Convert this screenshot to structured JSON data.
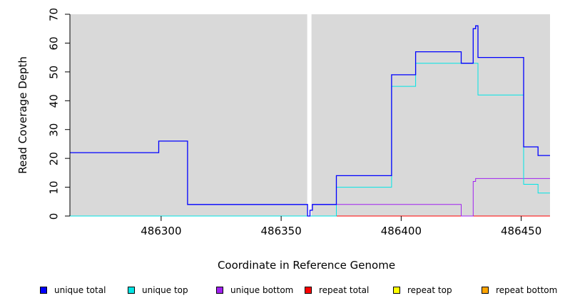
{
  "chart_data": {
    "type": "line",
    "xlabel": "Coordinate in Reference Genome",
    "ylabel": "Read Coverage Depth",
    "xlim": [
      486262,
      486462
    ],
    "ylim": [
      0,
      70
    ],
    "xticks": [
      486300,
      486350,
      486400,
      486450
    ],
    "yticks": [
      0,
      10,
      20,
      30,
      40,
      50,
      60,
      70
    ],
    "background": "#d9d9d9",
    "gap_region": [
      486361,
      486363
    ],
    "series": [
      {
        "name": "unique total",
        "color": "#0000ff",
        "x": [
          486262,
          486299,
          486299,
          486311,
          486311,
          486361,
          486361,
          486362,
          486362,
          486363,
          486363,
          486373,
          486373,
          486396,
          486396,
          486406,
          486406,
          486425,
          486425,
          486430,
          486430,
          486431,
          486431,
          486432,
          486432,
          486451,
          486451,
          486457,
          486457,
          486462
        ],
        "y": [
          22,
          22,
          26,
          26,
          4,
          4,
          0,
          0,
          2,
          2,
          4,
          4,
          14,
          14,
          49,
          49,
          57,
          57,
          53,
          53,
          65,
          65,
          66,
          66,
          55,
          55,
          24,
          24,
          21,
          21
        ]
      },
      {
        "name": "unique top",
        "color": "#00e5e5",
        "x": [
          486262,
          486373,
          486373,
          486396,
          486396,
          486406,
          486406,
          486432,
          486432,
          486451,
          486451,
          486457,
          486457,
          486462
        ],
        "y": [
          0,
          0,
          10,
          10,
          45,
          45,
          53,
          53,
          42,
          42,
          11,
          11,
          8,
          8
        ]
      },
      {
        "name": "unique bottom",
        "color": "#a020f0",
        "x": [
          486262,
          486361,
          486361,
          486362,
          486362,
          486363,
          486363,
          486425,
          486425,
          486430,
          486430,
          486431,
          486431,
          486462
        ],
        "y": [
          0,
          0,
          0,
          0,
          2,
          2,
          4,
          4,
          0,
          0,
          12,
          12,
          13,
          13
        ]
      },
      {
        "name": "repeat total",
        "color": "#ff0000",
        "x": [
          486262,
          486462
        ],
        "y": [
          0,
          0
        ]
      },
      {
        "name": "repeat top",
        "color": "#ffff00",
        "x": [
          486262,
          486462
        ],
        "y": [
          0,
          0
        ]
      },
      {
        "name": "repeat bottom",
        "color": "#ffa500",
        "x": [
          486262,
          486462
        ],
        "y": [
          0,
          0
        ]
      }
    ]
  }
}
